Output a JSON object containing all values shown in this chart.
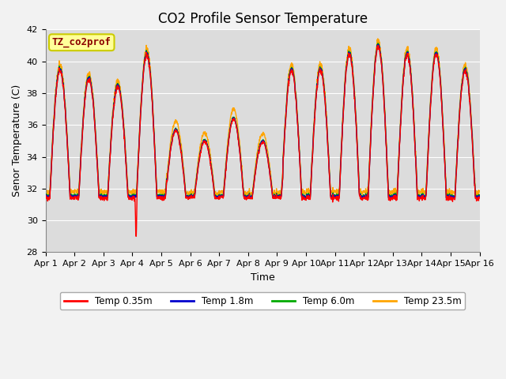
{
  "title": "CO2 Profile Sensor Temperature",
  "ylabel": "Senor Temperature (C)",
  "xlabel": "Time",
  "ylim": [
    28,
    42
  ],
  "xlim": [
    0,
    15
  ],
  "yticks": [
    28,
    30,
    32,
    34,
    36,
    38,
    40,
    42
  ],
  "xtick_labels": [
    "Apr 1",
    "Apr 2",
    "Apr 3",
    "Apr 4",
    "Apr 5",
    "Apr 6",
    "Apr 7",
    "Apr 8",
    "Apr 9",
    "Apr 10",
    "Apr 11",
    "Apr 12",
    "Apr 13",
    "Apr 14",
    "Apr 15",
    "Apr 16"
  ],
  "annotation_text": "TZ_co2prof",
  "annotation_color": "#8B0000",
  "annotation_bg": "#FFFF99",
  "annotation_border": "#CCCC00",
  "colors": {
    "0.35m": "#FF0000",
    "1.8m": "#0000CD",
    "6.0m": "#00AA00",
    "23.5m": "#FFA500"
  },
  "legend_labels": [
    "Temp 0.35m",
    "Temp 1.8m",
    "Temp 6.0m",
    "Temp 23.5m"
  ],
  "plot_bg": "#DCDCDC",
  "band_bg": "#C8C8C8",
  "grid_color": "#BEBEBE",
  "title_fontsize": 12,
  "label_fontsize": 9,
  "tick_fontsize": 8,
  "fig_width": 6.4,
  "fig_height": 4.8,
  "dpi": 100
}
